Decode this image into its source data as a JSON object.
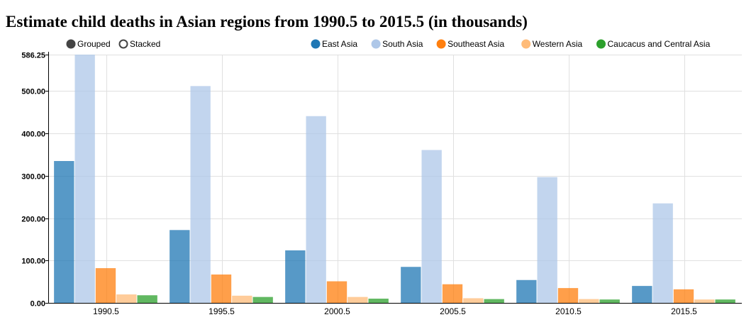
{
  "title": "Estimate child deaths in Asian regions from 1990.5 to 2015.5 (in thousands)",
  "controls": [
    {
      "label": "Grouped",
      "selected": true
    },
    {
      "label": "Stacked",
      "selected": false
    }
  ],
  "chart_data": {
    "type": "bar",
    "categories": [
      "1990.5",
      "1995.5",
      "2000.5",
      "2005.5",
      "2010.5",
      "2015.5"
    ],
    "series": [
      {
        "name": "East Asia",
        "color": "#1f77b4",
        "values": [
          335,
          172,
          124,
          85,
          54,
          40
        ]
      },
      {
        "name": "South Asia",
        "color": "#aec7e8",
        "values": [
          586.25,
          512,
          441,
          361,
          297,
          235
        ]
      },
      {
        "name": "Southeast Asia",
        "color": "#ff7f0e",
        "values": [
          82,
          67,
          51,
          44,
          35,
          32
        ]
      },
      {
        "name": "Western Asia",
        "color": "#ffbb78",
        "values": [
          20,
          17,
          14,
          11,
          9,
          8
        ]
      },
      {
        "name": "Caucacus and Central Asia",
        "color": "#2ca02c",
        "values": [
          18,
          14,
          10,
          9,
          8,
          8
        ]
      }
    ],
    "ylim": [
      0,
      586.25
    ],
    "yticks": [
      "0.00",
      "100.00",
      "200.00",
      "300.00",
      "400.00",
      "500.00",
      "586.25"
    ],
    "grid": true,
    "legend_position": "top-right"
  }
}
